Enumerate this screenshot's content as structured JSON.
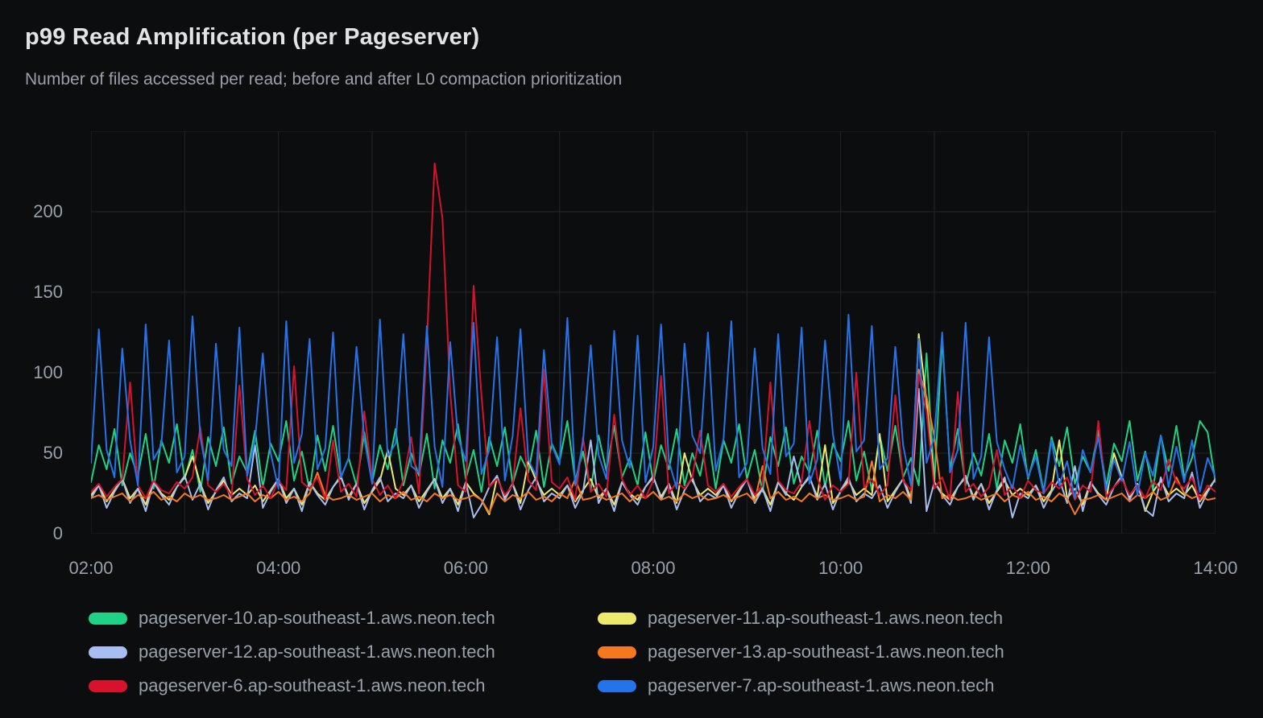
{
  "panel": {
    "title": "p99 Read Amplification (per Pageserver)",
    "subtitle": "Number of files accessed per read; before and after L0 compaction prioritization"
  },
  "theme": {
    "background": "#0c0d0e",
    "title_color": "#e2e3e5",
    "subtitle_color": "#9b9fa7",
    "axis_label_color": "#9aa0a8",
    "legend_label_color": "#9aa0a8",
    "grid_color": "#222528"
  },
  "chart_data": {
    "type": "line",
    "title": "p99 Read Amplification (per Pageserver)",
    "subtitle": "Number of files accessed per read; before and after L0 compaction prioritization",
    "grid": "on",
    "legend_position": "bottom",
    "x_axis": {
      "start_hour": 2,
      "end_hour": 14,
      "tick_labels": [
        "02:00",
        "04:00",
        "06:00",
        "08:00",
        "10:00",
        "12:00",
        "14:00"
      ],
      "tick_interval_hours": 2,
      "gridline_interval_hours": 1
    },
    "y_axis": {
      "min": 0,
      "max": 250,
      "ticks": [
        0,
        50,
        100,
        150,
        200
      ],
      "gridline_step": 50
    },
    "sample_interval_minutes": 5,
    "annotations": [
      "pageserver-6 spikes to ~230 at ~05:40 and ~155 at ~06:05",
      "pageserver-7 shows tall periodic spikes (~110-136) every ~15 min until ~11:40",
      "multi-series burst (~80-125) around 10:45-11:00, calmer after ~11:40"
    ],
    "series": [
      {
        "name": "pageserver-10.ap-southeast-1.aws.neon.tech",
        "color": "#1fd286",
        "values": [
          32,
          55,
          40,
          65,
          30,
          50,
          36,
          62,
          28,
          58,
          44,
          68,
          34,
          52,
          26,
          60,
          42,
          66,
          31,
          48,
          38,
          64,
          29,
          56,
          45,
          70,
          33,
          51,
          27,
          61,
          39,
          67,
          35,
          47,
          30,
          63,
          32,
          55,
          40,
          65,
          30,
          50,
          36,
          62,
          28,
          58,
          44,
          68,
          34,
          52,
          26,
          60,
          42,
          66,
          31,
          48,
          38,
          64,
          29,
          56,
          45,
          70,
          33,
          51,
          27,
          61,
          39,
          67,
          35,
          47,
          30,
          63,
          32,
          55,
          40,
          65,
          30,
          50,
          36,
          62,
          28,
          58,
          44,
          68,
          34,
          52,
          26,
          60,
          42,
          66,
          31,
          48,
          38,
          64,
          29,
          56,
          45,
          70,
          33,
          51,
          27,
          61,
          39,
          67,
          35,
          47,
          30,
          112,
          32,
          121,
          40,
          65,
          30,
          50,
          36,
          62,
          28,
          58,
          44,
          68,
          34,
          52,
          26,
          60,
          42,
          66,
          31,
          48,
          38,
          64,
          29,
          56,
          45,
          70,
          33,
          51,
          27,
          61,
          39,
          67,
          35,
          47,
          70,
          63,
          32
        ]
      },
      {
        "name": "pageserver-11.ap-southeast-1.aws.neon.tech",
        "color": "#ece96e",
        "values": [
          24,
          30,
          20,
          27,
          34,
          22,
          28,
          18,
          32,
          25,
          21,
          29,
          35,
          48,
          31,
          19,
          26,
          33,
          24,
          28,
          24,
          30,
          20,
          27,
          34,
          22,
          28,
          18,
          32,
          25,
          21,
          29,
          35,
          23,
          31,
          19,
          26,
          33,
          52,
          28,
          24,
          30,
          20,
          27,
          34,
          22,
          28,
          18,
          32,
          25,
          21,
          12,
          35,
          23,
          31,
          19,
          45,
          33,
          24,
          28,
          24,
          30,
          20,
          27,
          34,
          22,
          28,
          18,
          32,
          25,
          21,
          29,
          35,
          23,
          31,
          19,
          50,
          33,
          24,
          28,
          24,
          30,
          20,
          27,
          34,
          22,
          28,
          18,
          32,
          25,
          21,
          29,
          35,
          23,
          55,
          19,
          26,
          33,
          24,
          28,
          24,
          62,
          20,
          27,
          34,
          22,
          124,
          82,
          32,
          25,
          21,
          29,
          35,
          23,
          31,
          19,
          26,
          33,
          24,
          28,
          24,
          30,
          20,
          27,
          58,
          22,
          28,
          18,
          32,
          25,
          21,
          50,
          35,
          23,
          31,
          14,
          26,
          33,
          24,
          28,
          24,
          30,
          20,
          27,
          34
        ]
      },
      {
        "name": "pageserver-12.ap-southeast-1.aws.neon.tech",
        "color": "#a8bef2",
        "values": [
          22,
          30,
          16,
          26,
          34,
          19,
          28,
          14,
          32,
          24,
          18,
          29,
          36,
          21,
          31,
          15,
          27,
          35,
          20,
          25,
          22,
          55,
          16,
          26,
          34,
          19,
          28,
          14,
          32,
          24,
          18,
          29,
          36,
          21,
          31,
          15,
          27,
          35,
          20,
          25,
          22,
          30,
          16,
          26,
          34,
          19,
          28,
          14,
          32,
          10,
          18,
          29,
          36,
          21,
          31,
          15,
          27,
          35,
          20,
          25,
          22,
          30,
          16,
          26,
          58,
          19,
          28,
          14,
          32,
          24,
          18,
          29,
          36,
          21,
          31,
          15,
          27,
          35,
          20,
          25,
          22,
          30,
          16,
          26,
          34,
          19,
          28,
          14,
          32,
          24,
          48,
          29,
          36,
          21,
          31,
          15,
          27,
          35,
          20,
          25,
          22,
          30,
          16,
          26,
          34,
          19,
          90,
          14,
          32,
          24,
          18,
          29,
          36,
          21,
          31,
          15,
          27,
          35,
          10,
          25,
          22,
          30,
          16,
          26,
          34,
          19,
          42,
          14,
          32,
          24,
          18,
          29,
          36,
          21,
          31,
          15,
          11,
          35,
          20,
          25,
          22,
          38,
          16,
          26,
          34
        ]
      },
      {
        "name": "pageserver-13.ap-southeast-1.aws.neon.tech",
        "color": "#f5781e",
        "values": [
          22,
          24,
          21,
          23,
          25,
          20,
          24,
          22,
          26,
          21,
          23,
          20,
          25,
          22,
          24,
          21,
          22,
          24,
          21,
          23,
          25,
          20,
          24,
          22,
          26,
          21,
          23,
          20,
          25,
          38,
          24,
          21,
          22,
          24,
          21,
          23,
          25,
          20,
          24,
          22,
          26,
          21,
          23,
          20,
          25,
          22,
          24,
          21,
          22,
          24,
          21,
          13,
          25,
          20,
          24,
          22,
          26,
          21,
          23,
          20,
          25,
          22,
          34,
          21,
          22,
          24,
          21,
          23,
          25,
          20,
          24,
          22,
          26,
          21,
          23,
          20,
          25,
          22,
          24,
          21,
          22,
          24,
          21,
          23,
          25,
          20,
          42,
          22,
          26,
          21,
          23,
          20,
          25,
          22,
          24,
          21,
          22,
          24,
          21,
          23,
          45,
          20,
          24,
          22,
          26,
          21,
          102,
          85,
          60,
          22,
          24,
          21,
          22,
          24,
          21,
          23,
          25,
          20,
          24,
          22,
          26,
          21,
          23,
          20,
          25,
          22,
          12,
          21,
          22,
          24,
          21,
          23,
          25,
          20,
          24,
          22,
          26,
          21,
          23,
          35,
          25,
          22,
          24,
          21,
          22
        ]
      },
      {
        "name": "pageserver-6.ap-southeast-1.aws.neon.tech",
        "color": "#d6122d",
        "values": [
          26,
          31,
          23,
          29,
          34,
          94,
          30,
          22,
          33,
          27,
          25,
          32,
          28,
          35,
          66,
          30,
          26,
          31,
          23,
          92,
          34,
          24,
          30,
          22,
          33,
          27,
          104,
          32,
          28,
          35,
          21,
          58,
          26,
          31,
          23,
          76,
          34,
          24,
          30,
          22,
          33,
          60,
          25,
          118,
          230,
          196,
          88,
          30,
          26,
          154,
          86,
          29,
          34,
          24,
          30,
          78,
          33,
          27,
          102,
          32,
          28,
          35,
          21,
          60,
          26,
          31,
          23,
          74,
          34,
          24,
          30,
          22,
          33,
          98,
          25,
          32,
          28,
          35,
          64,
          30,
          26,
          31,
          23,
          29,
          34,
          24,
          30,
          94,
          33,
          27,
          25,
          32,
          70,
          35,
          21,
          30,
          26,
          31,
          100,
          29,
          34,
          24,
          30,
          86,
          33,
          27,
          99,
          76,
          28,
          35,
          21,
          88,
          26,
          31,
          23,
          29,
          52,
          24,
          30,
          22,
          33,
          27,
          25,
          32,
          28,
          35,
          21,
          30,
          26,
          70,
          23,
          29,
          34,
          24,
          30,
          22,
          33,
          27,
          46,
          32,
          28,
          35,
          21,
          30,
          26
        ]
      },
      {
        "name": "pageserver-7.ap-southeast-1.aws.neon.tech",
        "color": "#2573ea",
        "values": [
          44,
          127,
          52,
          35,
          115,
          58,
          30,
          130,
          46,
          55,
          120,
          38,
          48,
          135,
          60,
          33,
          118,
          52,
          42,
          128,
          36,
          58,
          112,
          50,
          28,
          132,
          44,
          62,
          121,
          40,
          53,
          125,
          35,
          47,
          116,
          59,
          31,
          133,
          48,
          56,
          124,
          42,
          38,
          129,
          54,
          29,
          119,
          60,
          45,
          131,
          37,
          52,
          122,
          33,
          61,
          127,
          46,
          36,
          114,
          55,
          43,
          134,
          30,
          57,
          117,
          49,
          34,
          126,
          58,
          41,
          123,
          32,
          54,
          130,
          45,
          28,
          118,
          61,
          50,
          125,
          39,
          59,
          132,
          35,
          44,
          115,
          53,
          37,
          124,
          48,
          56,
          128,
          31,
          46,
          120,
          62,
          33,
          136,
          51,
          58,
          129,
          40,
          47,
          116,
          55,
          30,
          121,
          44,
          60,
          125,
          38,
          52,
          131,
          34,
          48,
          122,
          57,
          40,
          28,
          55,
          35,
          48,
          25,
          58,
          30,
          45,
          22,
          52,
          38,
          60,
          27,
          46,
          33,
          57,
          24,
          50,
          36,
          61,
          29,
          54,
          32,
          58,
          26,
          47,
          35
        ]
      }
    ]
  }
}
